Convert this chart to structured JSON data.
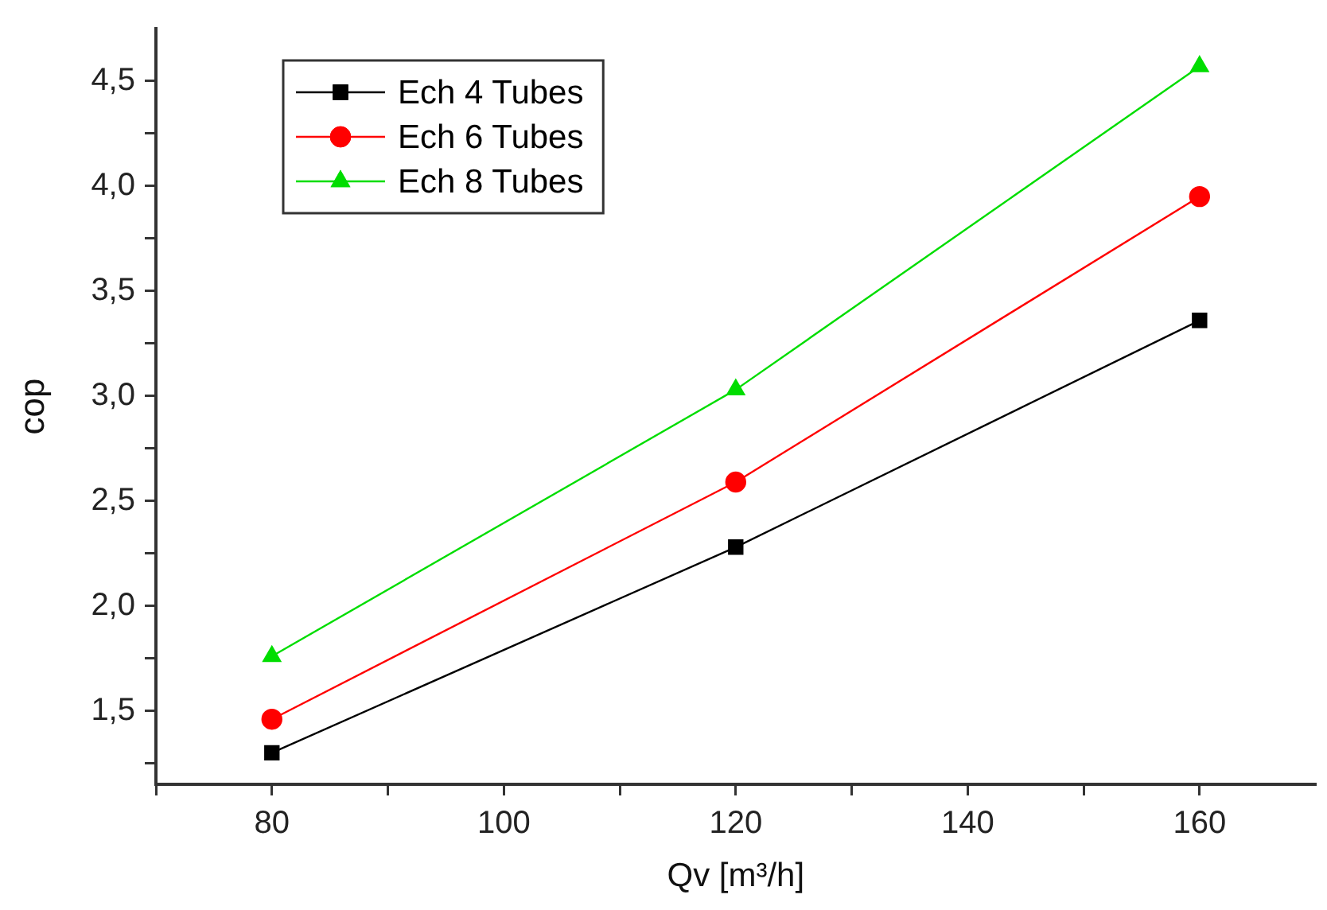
{
  "chart_data": {
    "type": "line",
    "xlabel": "Qv [m³/h]",
    "ylabel": "cop",
    "x": [
      80,
      120,
      160
    ],
    "series": [
      {
        "name": "Ech 4 Tubes",
        "color": "#000000",
        "marker": "square",
        "values": [
          1.3,
          2.28,
          3.36
        ]
      },
      {
        "name": "Ech 6 Tubes",
        "color": "#ff0000",
        "marker": "circle",
        "values": [
          1.46,
          2.59,
          3.95
        ]
      },
      {
        "name": "Ech 8 Tubes",
        "color": "#00dd00",
        "marker": "triangle",
        "values": [
          1.76,
          3.03,
          4.57
        ]
      }
    ],
    "xlim": [
      70,
      170
    ],
    "xticks": [
      {
        "value": 70,
        "label": null
      },
      80,
      {
        "value": 90,
        "label": null
      },
      100,
      {
        "value": 110,
        "label": null
      },
      120,
      {
        "value": 130,
        "label": null
      },
      140,
      {
        "value": 150,
        "label": null
      },
      160
    ],
    "ylim": [
      1.15,
      4.75
    ],
    "yticks": [
      {
        "value": 1.25,
        "label": null
      },
      {
        "value": 1.5,
        "label": "1,5"
      },
      {
        "value": 1.75,
        "label": null
      },
      {
        "value": 2.0,
        "label": "2,0"
      },
      {
        "value": 2.25,
        "label": null
      },
      {
        "value": 2.5,
        "label": "2,5"
      },
      {
        "value": 2.75,
        "label": null
      },
      {
        "value": 3.0,
        "label": "3,0"
      },
      {
        "value": 3.25,
        "label": null
      },
      {
        "value": 3.5,
        "label": "3,5"
      },
      {
        "value": 3.75,
        "label": null
      },
      {
        "value": 4.0,
        "label": "4,0"
      },
      {
        "value": 4.25,
        "label": null
      },
      {
        "value": 4.5,
        "label": "4,5"
      }
    ],
    "grid": false,
    "legend": "top left",
    "line_style": "solid"
  }
}
